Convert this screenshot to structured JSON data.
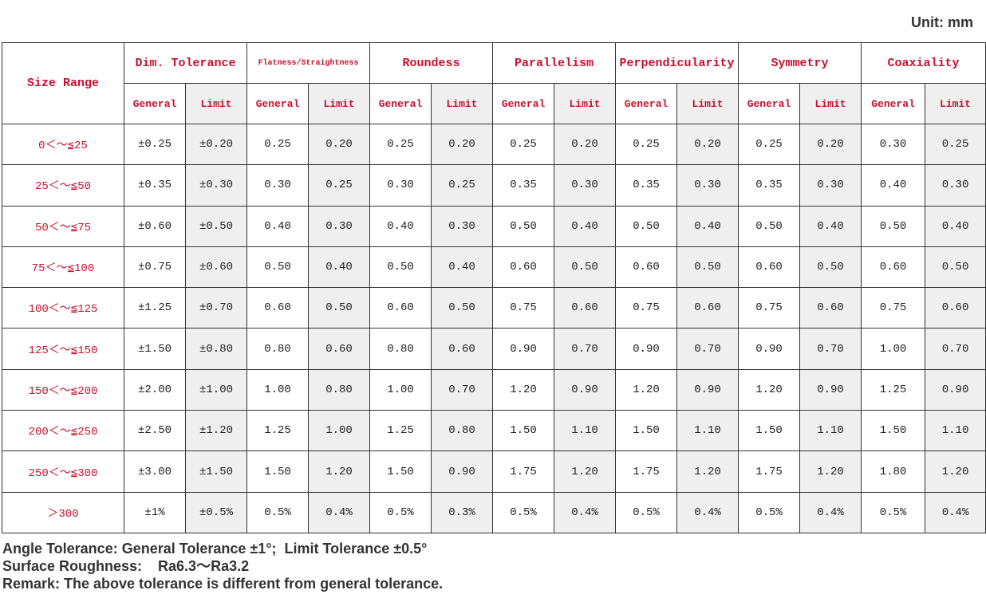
{
  "unit": "Unit: mm",
  "table": {
    "header": {
      "size_range": "Size Range",
      "groups": [
        {
          "name": "Dim. Tolerance",
          "sub": [
            "General",
            "Limit"
          ]
        },
        {
          "name": "Flatness/Straightness",
          "sub": [
            "General",
            "Limit"
          ]
        },
        {
          "name": "Roundess",
          "sub": [
            "General",
            "Limit"
          ]
        },
        {
          "name": "Parallelism",
          "sub": [
            "General",
            "Limit"
          ]
        },
        {
          "name": "Perpendicularity",
          "sub": [
            "General",
            "Limit"
          ]
        },
        {
          "name": "Symmetry",
          "sub": [
            "General",
            "Limit"
          ]
        },
        {
          "name": "Coaxiality",
          "sub": [
            "General",
            "Limit"
          ]
        }
      ]
    },
    "rows": [
      {
        "range": "0＜～≦25",
        "values": [
          "±0.25",
          "±0.20",
          "0.25",
          "0.20",
          "0.25",
          "0.20",
          "0.25",
          "0.20",
          "0.25",
          "0.20",
          "0.25",
          "0.20",
          "0.30",
          "0.25"
        ]
      },
      {
        "range": "25＜～≦50",
        "values": [
          "±0.35",
          "±0.30",
          "0.30",
          "0.25",
          "0.30",
          "0.25",
          "0.35",
          "0.30",
          "0.35",
          "0.30",
          "0.35",
          "0.30",
          "0.40",
          "0.30"
        ]
      },
      {
        "range": "50＜～≦75",
        "values": [
          "±0.60",
          "±0.50",
          "0.40",
          "0.30",
          "0.40",
          "0.30",
          "0.50",
          "0.40",
          "0.50",
          "0.40",
          "0.50",
          "0.40",
          "0.50",
          "0.40"
        ]
      },
      {
        "range": "75＜～≦100",
        "values": [
          "±0.75",
          "±0.60",
          "0.50",
          "0.40",
          "0.50",
          "0.40",
          "0.60",
          "0.50",
          "0.60",
          "0.50",
          "0.60",
          "0.50",
          "0.60",
          "0.50"
        ]
      },
      {
        "range": "100＜～≦125",
        "values": [
          "±1.25",
          "±0.70",
          "0.60",
          "0.50",
          "0.60",
          "0.50",
          "0.75",
          "0.60",
          "0.75",
          "0.60",
          "0.75",
          "0.60",
          "0.75",
          "0.60"
        ]
      },
      {
        "range": "125＜～≦150",
        "values": [
          "±1.50",
          "±0.80",
          "0.80",
          "0.60",
          "0.80",
          "0.60",
          "0.90",
          "0.70",
          "0.90",
          "0.70",
          "0.90",
          "0.70",
          "1.00",
          "0.70"
        ]
      },
      {
        "range": "150＜～≦200",
        "values": [
          "±2.00",
          "±1.00",
          "1.00",
          "0.80",
          "1.00",
          "0.70",
          "1.20",
          "0.90",
          "1.20",
          "0.90",
          "1.20",
          "0.90",
          "1.25",
          "0.90"
        ]
      },
      {
        "range": "200＜～≦250",
        "values": [
          "±2.50",
          "±1.20",
          "1.25",
          "1.00",
          "1.25",
          "0.80",
          "1.50",
          "1.10",
          "1.50",
          "1.10",
          "1.50",
          "1.10",
          "1.50",
          "1.10"
        ]
      },
      {
        "range": "250＜～≦300",
        "values": [
          "±3.00",
          "±1.50",
          "1.50",
          "1.20",
          "1.50",
          "0.90",
          "1.75",
          "1.20",
          "1.75",
          "1.20",
          "1.75",
          "1.20",
          "1.80",
          "1.20"
        ]
      },
      {
        "range": "＞300",
        "values": [
          "±1%",
          "±0.5%",
          "0.5%",
          "0.4%",
          "0.5%",
          "0.3%",
          "0.5%",
          "0.4%",
          "0.5%",
          "0.4%",
          "0.5%",
          "0.4%",
          "0.5%",
          "0.4%"
        ]
      }
    ]
  },
  "notes": [
    "Angle Tolerance: General Tolerance ±1°;  Limit Tolerance ±0.5°",
    "Surface Roughness:    Ra6.3～Ra3.2",
    "Remark: The above tolerance is different from general tolerance."
  ]
}
